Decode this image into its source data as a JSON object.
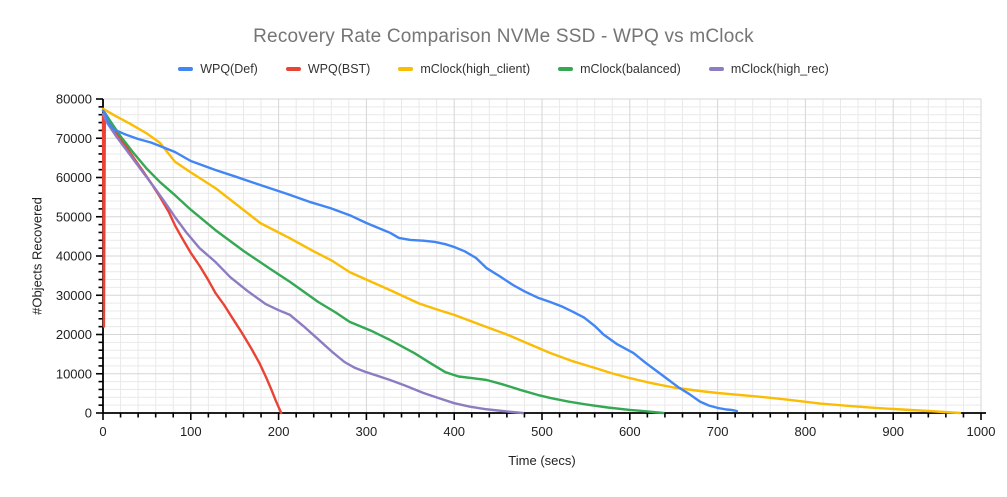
{
  "colors": {
    "title_text": "#757575",
    "axis_text": "#222222",
    "axis_line": "#000000",
    "grid_minor": "#e9e9e9",
    "grid_major": "#d6d6d6",
    "background": "#ffffff"
  },
  "chart_data": {
    "type": "line",
    "title": "Recovery Rate Comparison  NVMe SSD - WPQ vs mClock",
    "xlabel": "Time (secs)",
    "ylabel": "#Objects Recovered",
    "xlim": [
      0,
      1000
    ],
    "ylim": [
      0,
      80000
    ],
    "x_major_step": 100,
    "x_minor_step": 20,
    "y_major_step": 10000,
    "y_minor_step": 2000,
    "grid": true,
    "legend_position": "top",
    "series": [
      {
        "name": "WPQ(Def)",
        "color": "#4285F4",
        "points": [
          [
            0,
            77000
          ],
          [
            3,
            76200
          ],
          [
            6,
            73800
          ],
          [
            12,
            72300
          ],
          [
            25,
            71000
          ],
          [
            40,
            69800
          ],
          [
            55,
            68900
          ],
          [
            82,
            66500
          ],
          [
            100,
            64200
          ],
          [
            128,
            61900
          ],
          [
            150,
            60300
          ],
          [
            180,
            58000
          ],
          [
            210,
            55800
          ],
          [
            235,
            53800
          ],
          [
            259,
            52200
          ],
          [
            281,
            50400
          ],
          [
            300,
            48400
          ],
          [
            315,
            47000
          ],
          [
            327,
            45900
          ],
          [
            337,
            44600
          ],
          [
            350,
            44100
          ],
          [
            365,
            43900
          ],
          [
            378,
            43600
          ],
          [
            390,
            43000
          ],
          [
            400,
            42300
          ],
          [
            412,
            41200
          ],
          [
            425,
            39500
          ],
          [
            437,
            36900
          ],
          [
            452,
            34800
          ],
          [
            467,
            32600
          ],
          [
            480,
            31000
          ],
          [
            495,
            29400
          ],
          [
            509,
            28300
          ],
          [
            522,
            27200
          ],
          [
            535,
            25800
          ],
          [
            548,
            24300
          ],
          [
            560,
            22200
          ],
          [
            570,
            20000
          ],
          [
            585,
            17600
          ],
          [
            604,
            15300
          ],
          [
            618,
            12800
          ],
          [
            630,
            10800
          ],
          [
            642,
            8800
          ],
          [
            655,
            6600
          ],
          [
            668,
            4800
          ],
          [
            680,
            2900
          ],
          [
            690,
            1900
          ],
          [
            700,
            1300
          ],
          [
            710,
            900
          ],
          [
            716,
            800
          ],
          [
            722,
            500
          ]
        ]
      },
      {
        "name": "WPQ(BST)",
        "color": "#EA4335",
        "points": [
          [
            0,
            75800
          ],
          [
            1,
            22000
          ],
          [
            2,
            75500
          ],
          [
            8,
            73800
          ],
          [
            15,
            71500
          ],
          [
            25,
            68300
          ],
          [
            35,
            65000
          ],
          [
            45,
            61800
          ],
          [
            55,
            58500
          ],
          [
            65,
            55000
          ],
          [
            75,
            51200
          ],
          [
            82,
            47800
          ],
          [
            90,
            44600
          ],
          [
            100,
            40800
          ],
          [
            110,
            37500
          ],
          [
            120,
            33800
          ],
          [
            128,
            30600
          ],
          [
            138,
            27500
          ],
          [
            148,
            24000
          ],
          [
            158,
            20500
          ],
          [
            168,
            16800
          ],
          [
            178,
            12800
          ],
          [
            186,
            9000
          ],
          [
            192,
            5800
          ],
          [
            197,
            3000
          ],
          [
            201,
            1000
          ],
          [
            203,
            0
          ]
        ]
      },
      {
        "name": "mClock(high_client)",
        "color": "#FBBC04",
        "points": [
          [
            0,
            77500
          ],
          [
            15,
            75600
          ],
          [
            30,
            73800
          ],
          [
            50,
            71200
          ],
          [
            65,
            68800
          ],
          [
            82,
            64000
          ],
          [
            100,
            61300
          ],
          [
            128,
            57300
          ],
          [
            155,
            52600
          ],
          [
            179,
            48400
          ],
          [
            213,
            44500
          ],
          [
            240,
            41200
          ],
          [
            260,
            38900
          ],
          [
            281,
            35900
          ],
          [
            300,
            34000
          ],
          [
            327,
            31300
          ],
          [
            360,
            27900
          ],
          [
            380,
            26400
          ],
          [
            400,
            25000
          ],
          [
            430,
            22500
          ],
          [
            460,
            20000
          ],
          [
            485,
            17600
          ],
          [
            509,
            15300
          ],
          [
            535,
            13200
          ],
          [
            560,
            11500
          ],
          [
            580,
            10100
          ],
          [
            600,
            8900
          ],
          [
            625,
            7600
          ],
          [
            650,
            6500
          ],
          [
            680,
            5600
          ],
          [
            700,
            5100
          ],
          [
            730,
            4500
          ],
          [
            750,
            4100
          ],
          [
            780,
            3400
          ],
          [
            817,
            2400
          ],
          [
            850,
            1800
          ],
          [
            880,
            1300
          ],
          [
            910,
            900
          ],
          [
            940,
            500
          ],
          [
            976,
            0
          ]
        ]
      },
      {
        "name": "mClock(balanced)",
        "color": "#34A853",
        "points": [
          [
            0,
            77200
          ],
          [
            8,
            74500
          ],
          [
            20,
            70500
          ],
          [
            35,
            66200
          ],
          [
            50,
            62200
          ],
          [
            65,
            58800
          ],
          [
            82,
            55500
          ],
          [
            100,
            51800
          ],
          [
            128,
            46600
          ],
          [
            160,
            41300
          ],
          [
            190,
            36800
          ],
          [
            213,
            33400
          ],
          [
            245,
            28300
          ],
          [
            265,
            25600
          ],
          [
            281,
            23200
          ],
          [
            305,
            21000
          ],
          [
            327,
            18600
          ],
          [
            355,
            15200
          ],
          [
            375,
            12400
          ],
          [
            390,
            10400
          ],
          [
            405,
            9300
          ],
          [
            420,
            8900
          ],
          [
            437,
            8400
          ],
          [
            455,
            7300
          ],
          [
            475,
            5900
          ],
          [
            495,
            4600
          ],
          [
            510,
            3800
          ],
          [
            530,
            2900
          ],
          [
            550,
            2200
          ],
          [
            575,
            1400
          ],
          [
            600,
            800
          ],
          [
            620,
            400
          ],
          [
            638,
            0
          ]
        ]
      },
      {
        "name": "mClock(high_rec)",
        "color": "#8E7CC3",
        "points": [
          [
            0,
            76200
          ],
          [
            5,
            73800
          ],
          [
            15,
            70500
          ],
          [
            30,
            66000
          ],
          [
            45,
            61500
          ],
          [
            60,
            57000
          ],
          [
            72,
            53200
          ],
          [
            82,
            49900
          ],
          [
            95,
            46000
          ],
          [
            110,
            42000
          ],
          [
            128,
            38500
          ],
          [
            145,
            34600
          ],
          [
            165,
            31000
          ],
          [
            185,
            27800
          ],
          [
            200,
            26200
          ],
          [
            213,
            25000
          ],
          [
            228,
            22200
          ],
          [
            245,
            18800
          ],
          [
            262,
            15400
          ],
          [
            275,
            13000
          ],
          [
            287,
            11500
          ],
          [
            300,
            10400
          ],
          [
            315,
            9300
          ],
          [
            327,
            8400
          ],
          [
            345,
            6900
          ],
          [
            365,
            5100
          ],
          [
            385,
            3600
          ],
          [
            400,
            2500
          ],
          [
            418,
            1600
          ],
          [
            435,
            1000
          ],
          [
            455,
            500
          ],
          [
            478,
            0
          ]
        ]
      }
    ]
  }
}
